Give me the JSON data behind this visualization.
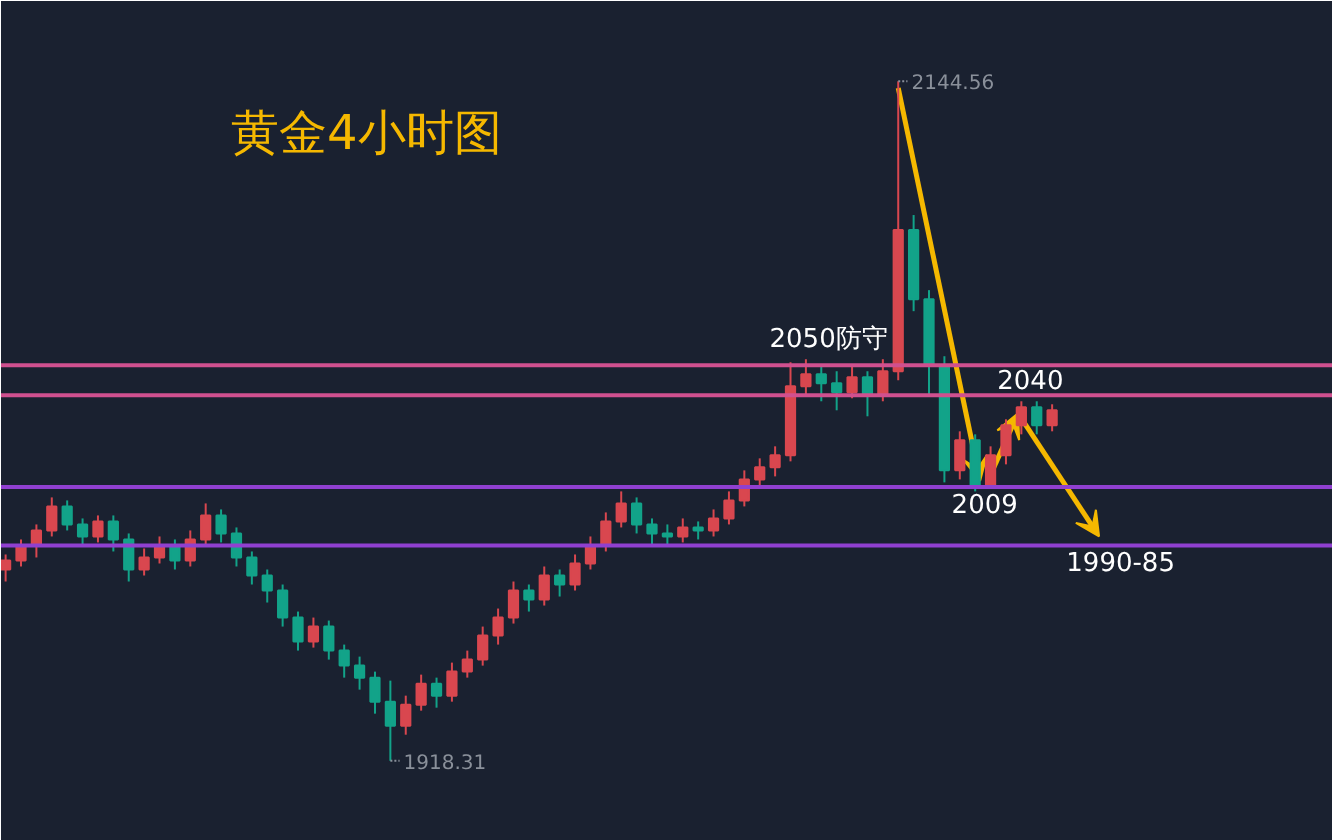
{
  "chart_data": {
    "type": "candlestick",
    "title": "黄金4小时图",
    "tick_labels": false,
    "grid": false,
    "categories": [
      null,
      null,
      null,
      null,
      null,
      null,
      null,
      null,
      null,
      null,
      null,
      null,
      null,
      null,
      null,
      null,
      null,
      null,
      null,
      null,
      null,
      null,
      null,
      null,
      null,
      null,
      null,
      null,
      null,
      null,
      null,
      null,
      null,
      null,
      null,
      null,
      null,
      null,
      null,
      null,
      null,
      null,
      null,
      null,
      null,
      null,
      null,
      null,
      null,
      null,
      null,
      null,
      null,
      null,
      null,
      null,
      null,
      null,
      null,
      null,
      null,
      null,
      null,
      null,
      null,
      null,
      null,
      null,
      null
    ],
    "ohlc": [
      [
        1982,
        1987,
        1978,
        1985
      ],
      [
        1985,
        1992,
        1983,
        1990
      ],
      [
        1990,
        1997,
        1986,
        1995
      ],
      [
        1995,
        2006,
        1993,
        2003
      ],
      [
        2003,
        2005,
        1995,
        1997
      ],
      [
        1997,
        1999,
        1990,
        1993
      ],
      [
        1993,
        2000,
        1991,
        1998
      ],
      [
        1998,
        2000,
        1988,
        1992
      ],
      [
        1992,
        1994,
        1978,
        1982
      ],
      [
        1982,
        1989,
        1980,
        1986
      ],
      [
        1986,
        1993,
        1984,
        1990
      ],
      [
        1990,
        1992,
        1982,
        1985
      ],
      [
        1985,
        1995,
        1983,
        1992
      ],
      [
        1992,
        2004,
        1990,
        2000
      ],
      [
        2000,
        2002,
        1991,
        1994
      ],
      [
        1994,
        1996,
        1983,
        1986
      ],
      [
        1986,
        1988,
        1977,
        1980
      ],
      [
        1980,
        1982,
        1971,
        1975
      ],
      [
        1975,
        1977,
        1963,
        1966
      ],
      [
        1966,
        1968,
        1955,
        1958
      ],
      [
        1958,
        1966,
        1956,
        1963
      ],
      [
        1963,
        1965,
        1952,
        1955
      ],
      [
        1955,
        1957,
        1946,
        1950
      ],
      [
        1950,
        1953,
        1942,
        1946
      ],
      [
        1946,
        1948,
        1934,
        1938
      ],
      [
        1938,
        1945,
        1918.31,
        1930
      ],
      [
        1930,
        1940,
        1927,
        1937
      ],
      [
        1937,
        1947,
        1935,
        1944
      ],
      [
        1944,
        1946,
        1936,
        1940
      ],
      [
        1940,
        1951,
        1938,
        1948
      ],
      [
        1948,
        1955,
        1946,
        1952
      ],
      [
        1952,
        1963,
        1950,
        1960
      ],
      [
        1960,
        1969,
        1957,
        1966
      ],
      [
        1966,
        1978,
        1964,
        1975
      ],
      [
        1975,
        1977,
        1968,
        1972
      ],
      [
        1972,
        1983,
        1970,
        1980
      ],
      [
        1980,
        1982,
        1973,
        1977
      ],
      [
        1977,
        1987,
        1975,
        1984
      ],
      [
        1984,
        1993,
        1982,
        1990
      ],
      [
        1990,
        2001,
        1988,
        1998
      ],
      [
        1998,
        2008,
        1996,
        2004
      ],
      [
        2004,
        2006,
        1994,
        1997
      ],
      [
        1997,
        1999,
        1990,
        1994
      ],
      [
        1994,
        1997,
        1990,
        1993
      ],
      [
        1993,
        1999,
        1991,
        1996
      ],
      [
        1996,
        1998,
        1992,
        1995
      ],
      [
        1995,
        2002,
        1993,
        1999
      ],
      [
        1999,
        2008,
        1997,
        2005
      ],
      [
        2005,
        2015,
        2003,
        2012
      ],
      [
        2012,
        2019,
        2010,
        2016
      ],
      [
        2016,
        2023,
        2013,
        2020
      ],
      [
        2020,
        2051,
        2018,
        2043
      ],
      [
        2043,
        2052,
        2040,
        2047
      ],
      [
        2047,
        2050,
        2038,
        2044
      ],
      [
        2044,
        2048,
        2035,
        2041
      ],
      [
        2041,
        2050,
        2039,
        2046
      ],
      [
        2046,
        2048,
        2033,
        2040
      ],
      [
        2040,
        2052,
        2038,
        2048
      ],
      [
        2048,
        2144.56,
        2045,
        2095
      ],
      [
        2095,
        2100,
        2068,
        2072
      ],
      [
        2072,
        2075,
        2040,
        2050
      ],
      [
        2050,
        2053,
        2011,
        2015
      ],
      [
        2015,
        2028,
        2012,
        2025
      ],
      [
        2025,
        2027,
        2008,
        2010
      ],
      [
        2010,
        2023,
        2009,
        2020
      ],
      [
        2020,
        2032,
        2017,
        2030
      ],
      [
        2030,
        2038,
        2027,
        2036
      ],
      [
        2036,
        2038,
        2027,
        2030
      ],
      [
        2030,
        2037,
        2028,
        2035
      ]
    ],
    "ref_lines": [
      {
        "axis": "y",
        "value": 2050,
        "label": "2050防守",
        "color": "#d0508f"
      },
      {
        "axis": "y",
        "value": 2040,
        "label": "2040",
        "color": "#d0508f"
      },
      {
        "axis": "y",
        "value": 2009.5,
        "label": "2009",
        "color": "#9040d0"
      },
      {
        "axis": "y",
        "value": 1990,
        "label": "1990-85",
        "color": "#9040d0"
      }
    ],
    "annotations": [
      "2144.56",
      "1918.31"
    ]
  }
}
